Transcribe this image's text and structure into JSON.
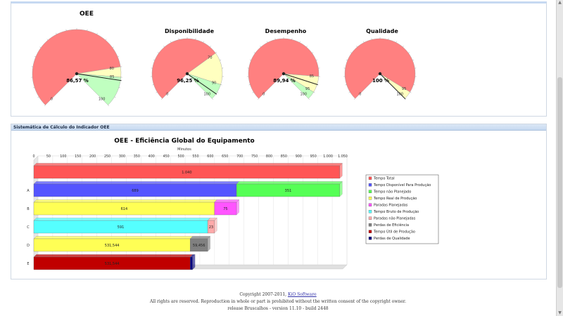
{
  "gauges": [
    {
      "title": "OEE",
      "value_label": "86,57 %",
      "ticks": [
        "0",
        "80",
        "85",
        "100"
      ]
    },
    {
      "title": "Disponibilidade",
      "value_label": "96,25 %",
      "ticks": [
        "0",
        "70",
        "90",
        "100"
      ]
    },
    {
      "title": "Desempenho",
      "value_label": "89,94 %",
      "ticks": [
        "0",
        "85",
        "95",
        "100"
      ]
    },
    {
      "title": "Qualidade",
      "value_label": "100 %",
      "ticks": [
        "0",
        "95",
        "100"
      ]
    }
  ],
  "section": {
    "header": "Sistemática de Cálculo do Indicador OEE"
  },
  "chart_data": {
    "type": "bar",
    "title": "OEE - Eficiência Global do Equipamento",
    "xlabel": "Minutos",
    "xlim": [
      0,
      1050
    ],
    "x_ticks": [
      "0",
      "50",
      "100",
      "150",
      "200",
      "250",
      "300",
      "350",
      "400",
      "450",
      "500",
      "550",
      "600",
      "650",
      "700",
      "750",
      "800",
      "850",
      "900",
      "950",
      "1.000",
      "1.050"
    ],
    "rows": [
      {
        "label": "",
        "segments": [
          {
            "series": "Tempo Total",
            "value": 1040,
            "label": "1.040"
          }
        ]
      },
      {
        "label": "A",
        "segments": [
          {
            "series": "Tempo Disponível Para Produção",
            "value": 689,
            "label": "689"
          },
          {
            "series": "Tempo não Planejado",
            "value": 351,
            "label": "351"
          }
        ]
      },
      {
        "label": "B",
        "segments": [
          {
            "series": "Tempo Real de Produção",
            "value": 614,
            "label": "614"
          },
          {
            "series": "Paradas Planejadas",
            "value": 75,
            "label": "75"
          }
        ]
      },
      {
        "label": "C",
        "segments": [
          {
            "series": "Tempo Bruto de Produção",
            "value": 591,
            "label": "591"
          },
          {
            "series": "Paradas não Planejadas",
            "value": 23,
            "label": "23"
          }
        ]
      },
      {
        "label": "D",
        "segments": [
          {
            "series": "Tempo Real de Produção",
            "value": 531.544,
            "label": "531,544"
          },
          {
            "series": "Perdas de Eficiência",
            "value": 59.456,
            "label": "59,456"
          }
        ]
      },
      {
        "label": "E",
        "segments": [
          {
            "series": "Tempo Útil de Produção",
            "value": 531.544,
            "label": "531,544"
          },
          {
            "series": "Perdas de Qualidade",
            "value": 8,
            "label": ""
          }
        ]
      }
    ],
    "legend": [
      {
        "name": "Tempo Total",
        "color": "#ff5555"
      },
      {
        "name": "Tempo Disponível Para Produção",
        "color": "#5555ff"
      },
      {
        "name": "Tempo não Planejado",
        "color": "#55ff55"
      },
      {
        "name": "Tempo Real de Produção",
        "color": "#ffff55"
      },
      {
        "name": "Paradas Planejadas",
        "color": "#ff55ff"
      },
      {
        "name": "Tempo Bruto de Produção",
        "color": "#55ffff"
      },
      {
        "name": "Paradas não Planejadas",
        "color": "#ffaaaa"
      },
      {
        "name": "Perdas de Eficiência",
        "color": "#808080"
      },
      {
        "name": "Tempo Útil de Produção",
        "color": "#c00000"
      },
      {
        "name": "Perdas de Qualidade",
        "color": "#000080"
      }
    ],
    "legend_position": "right",
    "grid": true
  },
  "colors": {
    "red_zone": "#ff8080",
    "yellow_zone": "#ffffc0",
    "green_zone": "#c0ffc0"
  },
  "footer": {
    "copyright_prefix": "Copyright 2007-2011, ",
    "company_link": "KiO Software",
    "rights": "All rights are reserved. Reproduction in whole or part is prohibited without the written consent of the copyright owner.",
    "release": "release Bruscalhos - version 11.10 - build 2448"
  }
}
